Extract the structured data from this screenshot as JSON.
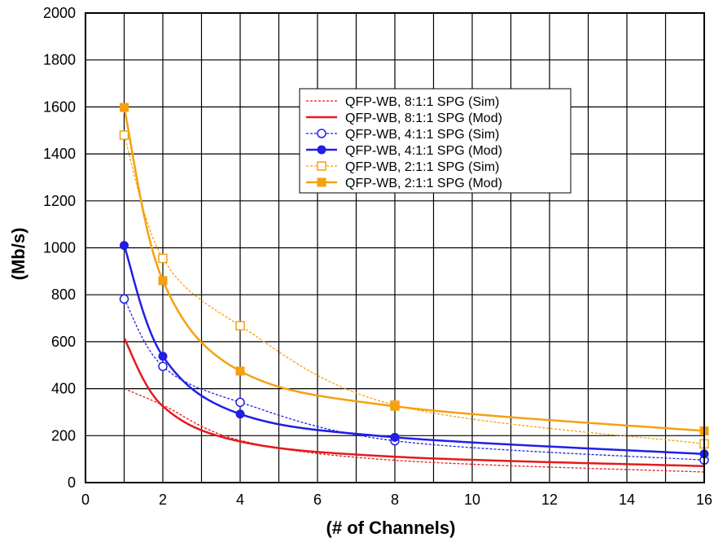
{
  "chart_data": {
    "type": "line",
    "title": "",
    "xlabel": "(# of Channels)",
    "ylabel": "(Mb/s)",
    "xlim": [
      0,
      16
    ],
    "ylim": [
      0,
      2000
    ],
    "x_ticks": [
      0,
      2,
      4,
      6,
      8,
      10,
      12,
      14,
      16
    ],
    "y_ticks": [
      0,
      200,
      400,
      600,
      800,
      1000,
      1200,
      1400,
      1600,
      1800,
      2000
    ],
    "grid": true,
    "legend_position": "top-right",
    "x": [
      1,
      2,
      4,
      8,
      16
    ],
    "series": [
      {
        "name": "QFP-WB, 8:1:1 SPG (Sim)",
        "color": "#e41a1c",
        "style": "dotted",
        "marker": "none",
        "values": [
          400,
          330,
          180,
          95,
          45
        ]
      },
      {
        "name": "QFP-WB, 8:1:1 SPG (Mod)",
        "color": "#e41a1c",
        "style": "solid",
        "marker": "none",
        "values": [
          615,
          325,
          175,
          110,
          70
        ]
      },
      {
        "name": "QFP-WB, 4:1:1 SPG (Sim)",
        "color": "#1f1fe6",
        "style": "dotted",
        "marker": "open-circle",
        "values": [
          782,
          495,
          342,
          178,
          96
        ]
      },
      {
        "name": "QFP-WB, 4:1:1 SPG (Mod)",
        "color": "#1f1fe6",
        "style": "solid",
        "marker": "filled-circle",
        "values": [
          1010,
          538,
          292,
          193,
          122
        ]
      },
      {
        "name": "QFP-WB, 2:1:1 SPG (Sim)",
        "color": "#f5a00f",
        "style": "dotted",
        "marker": "open-square",
        "values": [
          1480,
          955,
          668,
          330,
          165
        ]
      },
      {
        "name": "QFP-WB, 2:1:1 SPG (Mod)",
        "color": "#f5a00f",
        "style": "solid",
        "marker": "filled-square",
        "values": [
          1598,
          860,
          475,
          325,
          220
        ]
      }
    ]
  }
}
